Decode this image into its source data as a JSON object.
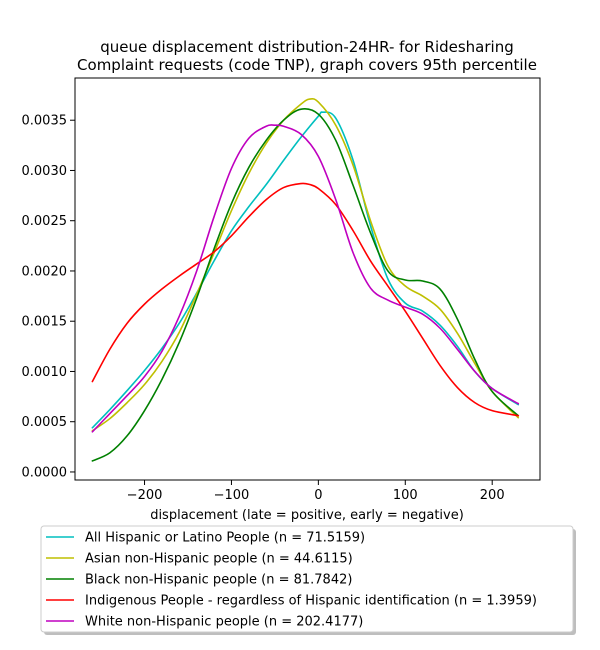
{
  "chart_data": {
    "type": "line",
    "title": "queue displacement distribution-24HR-  for Ridesharing\nComplaint  requests (code TNP), graph covers 95th percentile",
    "xlabel": "displacement (late = positive, early = negative)",
    "ylabel": "",
    "xlim": [
      -280,
      255
    ],
    "ylim": [
      -8e-05,
      0.00392
    ],
    "xticks": [
      -200,
      -100,
      0,
      100,
      200
    ],
    "yticks": [
      0.0,
      0.0005,
      0.001,
      0.0015,
      0.002,
      0.0025,
      0.003,
      0.0035
    ],
    "ytick_labels": [
      "0.0000",
      "0.0005",
      "0.0010",
      "0.0015",
      "0.0020",
      "0.0025",
      "0.0030",
      "0.0035"
    ],
    "grid": false,
    "legend": "below",
    "series": [
      {
        "name": "All Hispanic or Latino People (n = 71.5159)",
        "color": "#00bfbf",
        "x": [
          -260,
          -240,
          -220,
          -200,
          -180,
          -160,
          -140,
          -120,
          -100,
          -80,
          -60,
          -40,
          -20,
          0,
          5,
          20,
          40,
          60,
          80,
          100,
          120,
          140,
          160,
          180,
          200,
          230
        ],
        "y": [
          0.00044,
          0.00062,
          0.00081,
          0.00101,
          0.00123,
          0.00148,
          0.00178,
          0.0021,
          0.0024,
          0.00264,
          0.00286,
          0.0031,
          0.00333,
          0.00354,
          0.00358,
          0.00352,
          0.0031,
          0.00245,
          0.00192,
          0.00168,
          0.0016,
          0.00146,
          0.00125,
          0.001,
          0.00083,
          0.00067
        ]
      },
      {
        "name": "Asian non-Hispanic people (n = 44.6115)",
        "color": "#bfbf00",
        "x": [
          -260,
          -240,
          -220,
          -200,
          -180,
          -160,
          -140,
          -120,
          -100,
          -80,
          -60,
          -40,
          -20,
          -10,
          0,
          20,
          40,
          60,
          80,
          100,
          120,
          140,
          160,
          180,
          200,
          230
        ],
        "y": [
          0.00041,
          0.00053,
          0.00069,
          0.00087,
          0.0011,
          0.00139,
          0.00177,
          0.00218,
          0.0026,
          0.00297,
          0.00327,
          0.0035,
          0.00366,
          0.00371,
          0.00368,
          0.00345,
          0.00305,
          0.0025,
          0.00205,
          0.00185,
          0.00175,
          0.00162,
          0.00138,
          0.00108,
          0.0008,
          0.00054
        ]
      },
      {
        "name": "Black non-Hispanic people (n = 81.7842)",
        "color": "#008000",
        "x": [
          -260,
          -240,
          -220,
          -200,
          -180,
          -160,
          -140,
          -120,
          -100,
          -80,
          -60,
          -40,
          -20,
          0,
          20,
          40,
          60,
          80,
          100,
          120,
          140,
          160,
          180,
          200,
          230
        ],
        "y": [
          0.00011,
          0.00019,
          0.00036,
          0.00061,
          0.00092,
          0.00129,
          0.00173,
          0.00222,
          0.00267,
          0.00303,
          0.0033,
          0.0035,
          0.00361,
          0.00356,
          0.0033,
          0.00285,
          0.00238,
          0.002,
          0.00191,
          0.0019,
          0.00182,
          0.00152,
          0.00112,
          0.0008,
          0.00056
        ]
      },
      {
        "name": "Indigenous People - regardless of Hispanic identification (n = 1.3959)",
        "color": "#ff0000",
        "x": [
          -260,
          -240,
          -220,
          -200,
          -180,
          -160,
          -140,
          -120,
          -100,
          -80,
          -60,
          -40,
          -20,
          -10,
          0,
          20,
          40,
          60,
          80,
          100,
          120,
          140,
          160,
          180,
          200,
          230
        ],
        "y": [
          0.0009,
          0.00122,
          0.00148,
          0.00167,
          0.00182,
          0.00195,
          0.00207,
          0.00219,
          0.00235,
          0.00254,
          0.00271,
          0.00283,
          0.00287,
          0.00286,
          0.00282,
          0.00266,
          0.0024,
          0.0021,
          0.00185,
          0.0016,
          0.00133,
          0.00106,
          0.00084,
          0.00069,
          0.00061,
          0.00056
        ]
      },
      {
        "name": "White non-Hispanic people (n = 202.4177)",
        "color": "#bf00bf",
        "x": [
          -260,
          -240,
          -220,
          -200,
          -180,
          -160,
          -140,
          -120,
          -100,
          -80,
          -60,
          -50,
          -40,
          -20,
          0,
          20,
          40,
          60,
          80,
          100,
          120,
          140,
          160,
          180,
          200,
          230
        ],
        "y": [
          0.0004,
          0.00058,
          0.00076,
          0.00095,
          0.0012,
          0.00155,
          0.002,
          0.00254,
          0.00302,
          0.00332,
          0.00344,
          0.00345,
          0.00344,
          0.00336,
          0.00314,
          0.00271,
          0.00218,
          0.00183,
          0.00171,
          0.00164,
          0.00157,
          0.00143,
          0.00122,
          0.001,
          0.00083,
          0.00068
        ]
      }
    ]
  }
}
